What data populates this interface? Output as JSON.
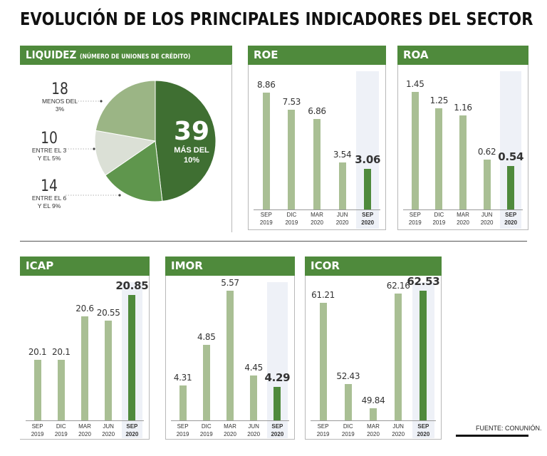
{
  "title": "EVOLUCIÓN DE LOS PRINCIPALES INDICADORES DEL SECTOR",
  "source": "FUENTE: CONUNIÓN.",
  "colors": {
    "header": "#4f8a3c",
    "bar_light": "#a9bf94",
    "bar_dark": "#4f8a3c",
    "highlight": "#eef1f7"
  },
  "liquidez": {
    "title": "LIQUIDEZ",
    "subtitle": "(NÚMERO DE UNIONES DE CRÉDITO)",
    "center_value": "39",
    "center_line1": "MÁS DEL",
    "center_line2": "10%",
    "labels": [
      {
        "value": "18",
        "line1": "MENOS DEL",
        "line2": "3%"
      },
      {
        "value": "10",
        "line1": "ENTRE EL 3",
        "line2": "Y EL 5%"
      },
      {
        "value": "14",
        "line1": "ENTRE EL 6",
        "line2": "Y EL 9%"
      }
    ]
  },
  "chart_data": [
    {
      "type": "pie",
      "title": "LIQUIDEZ",
      "subtitle": "(NÚMERO DE UNIONES DE CRÉDITO)",
      "slices": [
        {
          "label": "MÁS DEL 10%",
          "value": 39,
          "color": "#3f6f32"
        },
        {
          "label": "ENTRE EL 6 Y EL 9%",
          "value": 14,
          "color": "#5f964d"
        },
        {
          "label": "ENTRE EL 3 Y EL 5%",
          "value": 10,
          "color": "#dbe0d6"
        },
        {
          "label": "MENOS DEL 3%",
          "value": 18,
          "color": "#9bb585"
        }
      ]
    },
    {
      "type": "bar",
      "title": "ROE",
      "categories": [
        "SEP",
        "DIC",
        "MAR",
        "JUN",
        "SEP"
      ],
      "years": [
        "2019",
        "2019",
        "2020",
        "2020",
        "2020"
      ],
      "values": [
        8.86,
        7.53,
        6.86,
        3.54,
        3.06
      ],
      "labels": [
        "8.86",
        "7.53",
        "6.86",
        "3.54",
        "3.06"
      ],
      "ylim": [
        0,
        9.5
      ]
    },
    {
      "type": "bar",
      "title": "ROA",
      "categories": [
        "SEP",
        "DIC",
        "MAR",
        "JUN",
        "SEP"
      ],
      "years": [
        "2019",
        "2019",
        "2020",
        "2020",
        "2020"
      ],
      "values": [
        1.45,
        1.25,
        1.16,
        0.62,
        0.54
      ],
      "labels": [
        "1.45",
        "1.25",
        "1.16",
        "0.62",
        "0.54"
      ],
      "ylim": [
        0,
        1.55
      ]
    },
    {
      "type": "bar",
      "title": "ICAP",
      "categories": [
        "SEP",
        "DIC",
        "MAR",
        "JUN",
        "SEP"
      ],
      "years": [
        "2019",
        "2019",
        "2020",
        "2020",
        "2020"
      ],
      "values": [
        20.1,
        20.1,
        20.6,
        20.55,
        20.85
      ],
      "labels": [
        "20.1",
        "20.1",
        "20.6",
        "20.55",
        "20.85"
      ],
      "ylim": [
        19.4,
        20.9
      ]
    },
    {
      "type": "bar",
      "title": "IMOR",
      "categories": [
        "SEP",
        "DIC",
        "MAR",
        "JUN",
        "SEP"
      ],
      "years": [
        "2019",
        "2019",
        "2020",
        "2020",
        "2020"
      ],
      "values": [
        4.31,
        4.85,
        5.57,
        4.45,
        4.29
      ],
      "labels": [
        "4.31",
        "4.85",
        "5.57",
        "4.45",
        "4.29"
      ],
      "ylim": [
        3.85,
        5.57
      ]
    },
    {
      "type": "bar",
      "title": "ICOR",
      "categories": [
        "SEP",
        "DIC",
        "MAR",
        "JUN",
        "SEP"
      ],
      "years": [
        "2019",
        "2019",
        "2020",
        "2020",
        "2020"
      ],
      "values": [
        61.21,
        52.43,
        49.84,
        62.16,
        62.53
      ],
      "labels": [
        "61.21",
        "52.43",
        "49.84",
        "62.16",
        "62.53"
      ],
      "ylim": [
        48.5,
        62.5
      ]
    }
  ]
}
